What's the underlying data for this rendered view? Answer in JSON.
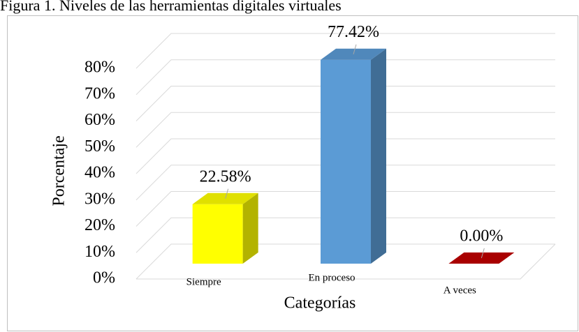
{
  "chart_data": {
    "type": "bar3d",
    "title": "Figura 1. Niveles de las herramientas digitales virtuales",
    "xlabel": "Categorías",
    "ylabel": "Porcentaje",
    "categories": [
      "Siempre",
      "En proceso",
      "A veces"
    ],
    "values": [
      22.58,
      77.42,
      0
    ],
    "value_labels": [
      "22.58%",
      "77.42%",
      "0.00%"
    ],
    "colors": [
      "#ffff00",
      "#5b9bd5",
      "#c00000"
    ],
    "ylim": [
      0,
      80
    ],
    "yticks": [
      {
        "value": 0,
        "label": "0%"
      },
      {
        "value": 10,
        "label": "10%"
      },
      {
        "value": 20,
        "label": "20%"
      },
      {
        "value": 30,
        "label": "30%"
      },
      {
        "value": 40,
        "label": "40%"
      },
      {
        "value": 50,
        "label": "50%"
      },
      {
        "value": 60,
        "label": "60%"
      },
      {
        "value": 70,
        "label": "70%"
      },
      {
        "value": 80,
        "label": "80%"
      }
    ],
    "grid": true
  }
}
